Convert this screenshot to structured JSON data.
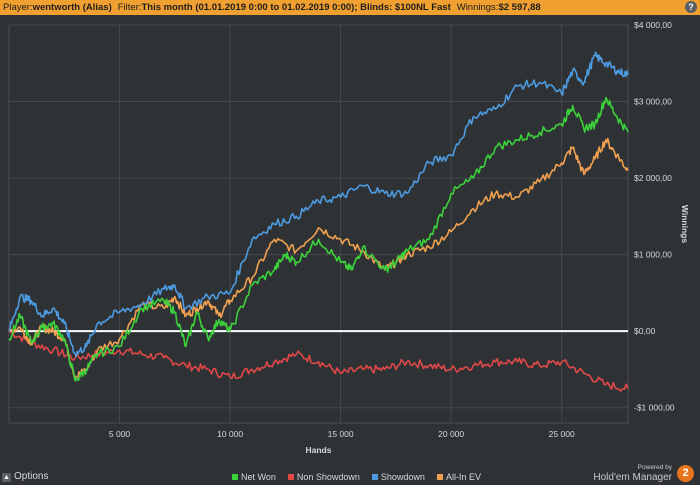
{
  "header": {
    "player_label": "Player:",
    "player_value": "wentworth (Alias)",
    "filter_label": "Filter:",
    "filter_value": "This month (01.01.2019 0:00 to 01.02.2019 0:00); Blinds: $100NL Fast",
    "winnings_label": "Winnings:",
    "winnings_value": "$2 597,88",
    "help_icon": "help-icon"
  },
  "footer": {
    "options_label": "Options",
    "powered_by": "Powered by",
    "product": "Hold'em Manager",
    "logo_text": "2"
  },
  "chart_data": {
    "type": "line",
    "xlabel": "Hands",
    "ylabel": "Winnings",
    "xlim": [
      0,
      28000
    ],
    "ylim": [
      -1200,
      4000
    ],
    "x_ticks": [
      5000,
      10000,
      15000,
      20000,
      25000
    ],
    "x_tick_labels": [
      "5 000",
      "10 000",
      "15 000",
      "20 000",
      "25 000"
    ],
    "y_ticks": [
      4000,
      3000,
      2000,
      1000,
      0,
      -1000
    ],
    "y_tick_labels": [
      "$4 000,00",
      "$3 000,00",
      "$2 000,00",
      "$1 000,00",
      "$0,00",
      "-$1 000,00"
    ],
    "grid": true,
    "legend_position": "bottom",
    "series": [
      {
        "name": "Net Won",
        "color": "#3bd13b",
        "x": [
          0,
          500,
          1000,
          1500,
          2000,
          2500,
          3000,
          3500,
          4000,
          5000,
          6000,
          7000,
          7500,
          8000,
          8500,
          9000,
          9500,
          10000,
          11000,
          12000,
          12500,
          13000,
          14000,
          15000,
          15500,
          16000,
          17000,
          17500,
          18000,
          19000,
          20000,
          21000,
          22000,
          23000,
          24000,
          25000,
          25500,
          26000,
          26500,
          27000,
          27500,
          28000
        ],
        "values": [
          -100,
          200,
          -150,
          50,
          100,
          -100,
          -650,
          -500,
          -300,
          -200,
          300,
          400,
          250,
          -200,
          250,
          -100,
          150,
          0,
          600,
          800,
          1000,
          900,
          1200,
          900,
          800,
          1100,
          800,
          900,
          1050,
          1200,
          1800,
          2000,
          2400,
          2500,
          2600,
          2700,
          2950,
          2650,
          2700,
          3050,
          2800,
          2600
        ]
      },
      {
        "name": "Non Showdown",
        "color": "#e04848",
        "x": [
          0,
          1000,
          2000,
          3000,
          4000,
          5000,
          6000,
          7000,
          8000,
          9000,
          10000,
          11000,
          12000,
          13000,
          14000,
          15000,
          16000,
          17000,
          18000,
          19000,
          20000,
          21000,
          22000,
          23000,
          24000,
          25000,
          26000,
          27000,
          28000
        ],
        "values": [
          0,
          -150,
          -250,
          -350,
          -300,
          -250,
          -300,
          -350,
          -450,
          -500,
          -600,
          -500,
          -400,
          -300,
          -400,
          -550,
          -500,
          -500,
          -400,
          -450,
          -500,
          -450,
          -400,
          -400,
          -450,
          -400,
          -550,
          -700,
          -750
        ]
      },
      {
        "name": "Showdown",
        "color": "#4d9ae0",
        "x": [
          0,
          500,
          1000,
          1500,
          2000,
          2500,
          3000,
          3500,
          4000,
          5000,
          6000,
          7000,
          7500,
          8000,
          9000,
          10000,
          11000,
          12000,
          13000,
          14000,
          15000,
          16000,
          17000,
          18000,
          19000,
          20000,
          21000,
          22000,
          23000,
          24000,
          25000,
          25500,
          26000,
          26500,
          27000,
          27500,
          28000
        ],
        "values": [
          0,
          450,
          400,
          200,
          300,
          100,
          -300,
          -200,
          100,
          250,
          350,
          550,
          600,
          300,
          450,
          500,
          1200,
          1400,
          1500,
          1700,
          1750,
          1900,
          1800,
          1800,
          2200,
          2300,
          2800,
          2900,
          3200,
          3250,
          3100,
          3400,
          3250,
          3600,
          3500,
          3400,
          3350
        ]
      },
      {
        "name": "All-In EV",
        "color": "#f0a050",
        "x": [
          0,
          500,
          1000,
          1500,
          2000,
          2500,
          3000,
          3500,
          4000,
          5000,
          6000,
          7000,
          7500,
          8000,
          8500,
          9000,
          9500,
          10000,
          11000,
          12000,
          13000,
          14000,
          15000,
          16000,
          17000,
          17500,
          18000,
          19000,
          20000,
          21000,
          22000,
          23000,
          24000,
          25000,
          25500,
          26000,
          26500,
          27000,
          27500,
          28000
        ],
        "values": [
          0,
          50,
          -150,
          50,
          0,
          -100,
          -600,
          -500,
          -250,
          -100,
          350,
          300,
          450,
          200,
          300,
          400,
          200,
          400,
          700,
          1200,
          1050,
          1350,
          1200,
          1050,
          800,
          900,
          1000,
          1100,
          1300,
          1600,
          1800,
          1750,
          1950,
          2200,
          2400,
          2050,
          2250,
          2500,
          2300,
          2100
        ]
      }
    ]
  }
}
